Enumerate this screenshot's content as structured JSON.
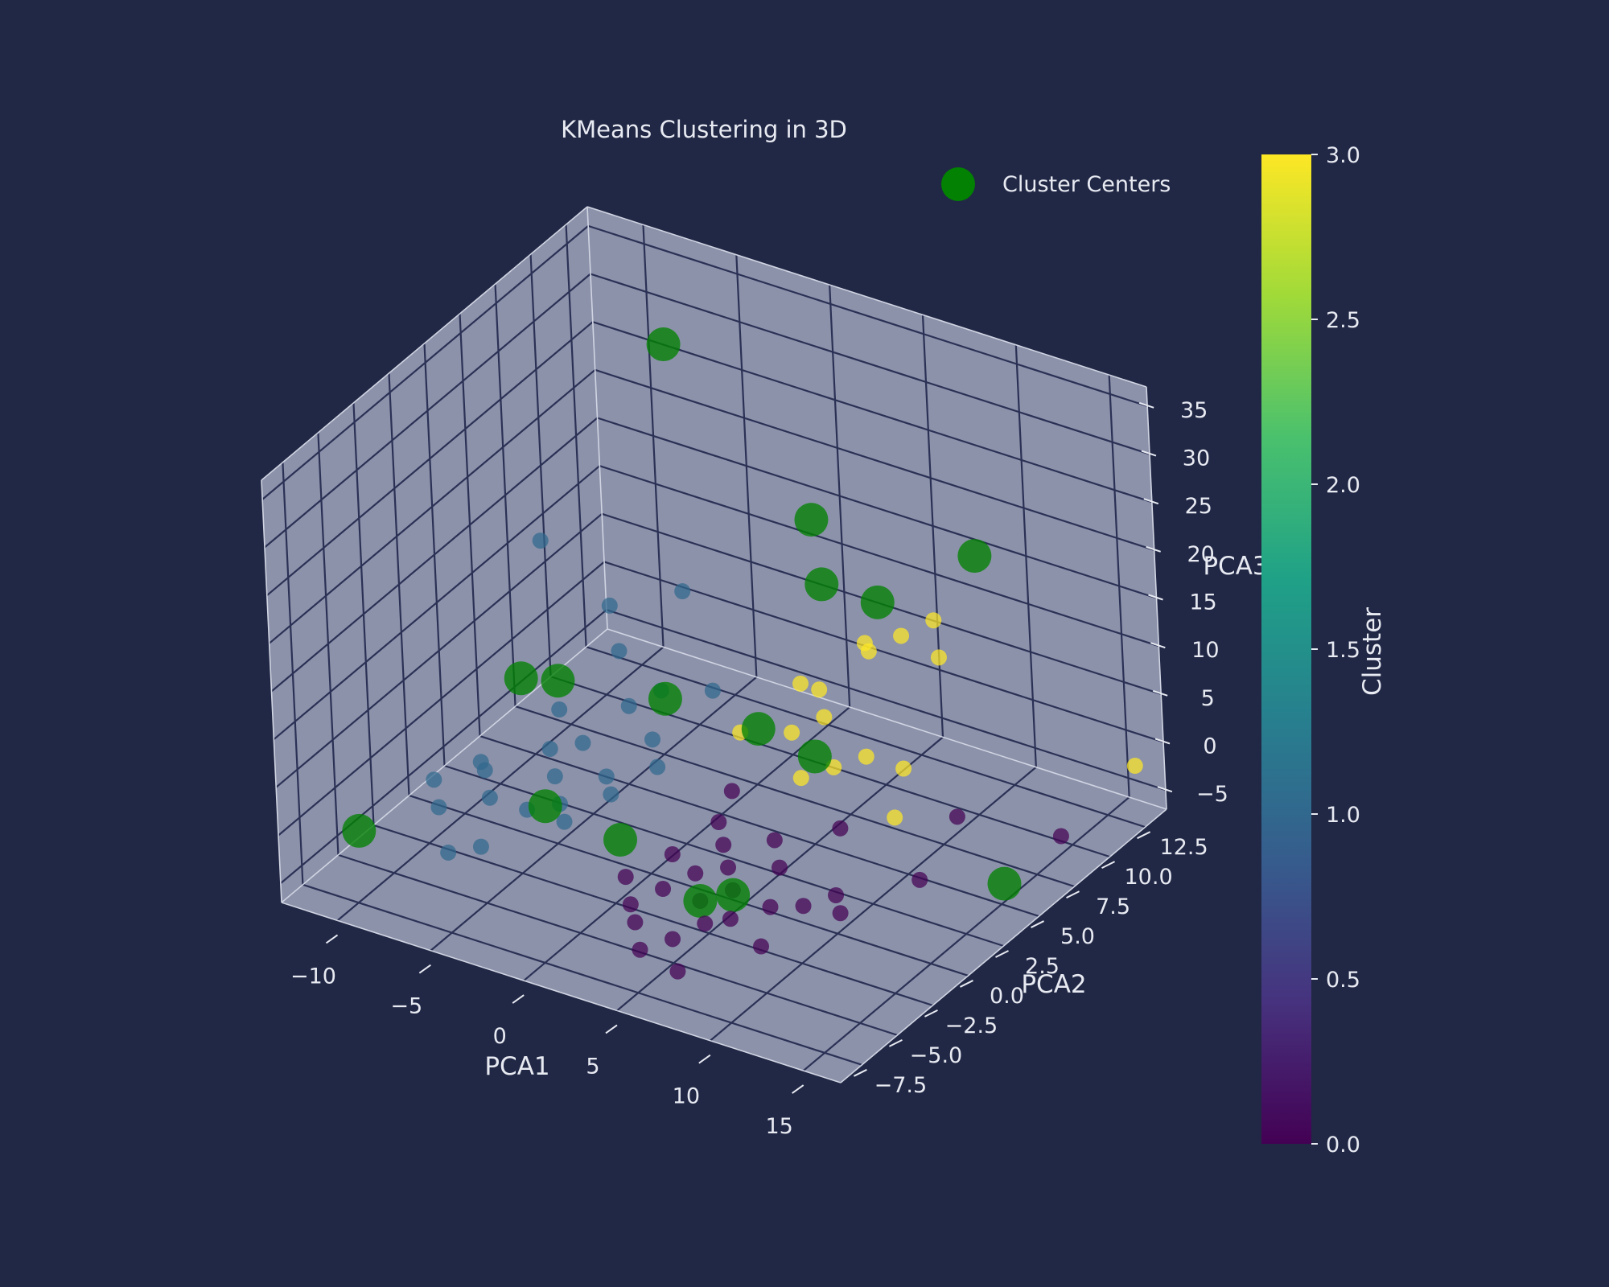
{
  "chart_data": {
    "type": "scatter",
    "title": "KMeans Clustering in 3D",
    "xlabel": "PCA1",
    "ylabel": "PCA2",
    "zlabel": "PCA3",
    "xlim": [
      -13,
      17
    ],
    "ylim": [
      -9,
      14
    ],
    "zlim": [
      -7,
      37
    ],
    "xticks": [
      "−10",
      "−5",
      "0",
      "5",
      "10",
      "15"
    ],
    "xtick_values": [
      -10,
      -5,
      0,
      5,
      10,
      15
    ],
    "yticks": [
      "−7.5",
      "−5.0",
      "−2.5",
      "0.0",
      "2.5",
      "5.0",
      "7.5",
      "10.0",
      "12.5"
    ],
    "ytick_values": [
      -7.5,
      -5,
      -2.5,
      0,
      2.5,
      5,
      7.5,
      10,
      12.5
    ],
    "zticks": [
      "−5",
      "0",
      "5",
      "10",
      "15",
      "20",
      "25",
      "30",
      "35"
    ],
    "ztick_values": [
      -5,
      0,
      5,
      10,
      15,
      20,
      25,
      30,
      35
    ],
    "grid": true,
    "legend": {
      "position": "top-right",
      "entries": [
        "Cluster Centers"
      ]
    },
    "colorbar": {
      "label": "Cluster",
      "range": [
        0,
        3
      ],
      "ticks": [
        "0.0",
        "0.5",
        "1.0",
        "1.5",
        "2.0",
        "2.5",
        "3.0"
      ],
      "colormap": "viridis"
    },
    "series": [
      {
        "cluster": 0,
        "points": [
          [
            3.0,
            -3.0,
            -3.0
          ],
          [
            4.0,
            -2.0,
            -2.0
          ],
          [
            5.0,
            -3.0,
            -3.0
          ],
          [
            6.0,
            -2.0,
            -2.5
          ],
          [
            7.0,
            -3.5,
            -3.0
          ],
          [
            2.0,
            -4.0,
            -4.0
          ],
          [
            3.0,
            -5.0,
            -4.0
          ],
          [
            5.0,
            -5.0,
            -4.5
          ],
          [
            6.0,
            -4.0,
            -3.5
          ],
          [
            8.0,
            -2.0,
            -3.0
          ],
          [
            9.0,
            -4.0,
            -4.0
          ],
          [
            4.0,
            0.0,
            -1.5
          ],
          [
            7.0,
            0.0,
            -2.0
          ],
          [
            5.0,
            -1.0,
            -2.0
          ],
          [
            3.0,
            1.0,
            -1.0
          ],
          [
            6.0,
            1.0,
            -1.0
          ],
          [
            10.0,
            0.0,
            -3.0
          ],
          [
            8.0,
            3.0,
            -1.0
          ],
          [
            2.0,
            -1.0,
            -2.5
          ],
          [
            4.0,
            -6.0,
            -5.0
          ],
          [
            11.0,
            -1.0,
            -3.0
          ],
          [
            13.0,
            2.0,
            -2.0
          ],
          [
            1.0,
            -3.0,
            -3.0
          ],
          [
            9.0,
            -1.0,
            -3.5
          ],
          [
            12.0,
            6.0,
            -1.0
          ],
          [
            16.0,
            8.0,
            -3.0
          ],
          [
            6.0,
            -6.0,
            -6.0
          ],
          [
            3.0,
            2.0,
            1.0
          ]
        ]
      },
      {
        "cluster": 1,
        "points": [
          [
            -8.0,
            -1.0,
            0.0
          ],
          [
            -9.0,
            -3.0,
            -2.0
          ],
          [
            -10.0,
            -2.0,
            -1.0
          ],
          [
            -7.0,
            -5.0,
            -3.0
          ],
          [
            -6.0,
            -4.0,
            -3.0
          ],
          [
            -5.0,
            0.0,
            0.0
          ],
          [
            -4.0,
            -1.0,
            -1.0
          ],
          [
            -3.0,
            1.0,
            0.0
          ],
          [
            -5.0,
            2.0,
            1.0
          ],
          [
            -6.0,
            1.0,
            1.0
          ],
          [
            -7.0,
            3.0,
            2.0
          ],
          [
            -4.0,
            4.0,
            3.0
          ],
          [
            -2.0,
            3.0,
            2.0
          ],
          [
            -3.0,
            5.0,
            4.0
          ],
          [
            -6.0,
            6.0,
            5.0
          ],
          [
            -8.0,
            8.0,
            6.0
          ],
          [
            -2.0,
            0.0,
            0.0
          ],
          [
            -1.0,
            2.0,
            1.0
          ],
          [
            -9.0,
            0.0,
            -1.0
          ],
          [
            -5.0,
            -2.0,
            -1.0
          ],
          [
            -7.0,
            -2.0,
            -1.0
          ],
          [
            -4.0,
            8.0,
            10.0
          ],
          [
            -10.0,
            6.0,
            14.0
          ],
          [
            -1.0,
            6.0,
            4.0
          ],
          [
            -3.0,
            -2.0,
            -1.0
          ]
        ]
      },
      {
        "cluster": 3,
        "points": [
          [
            2.0,
            4.0,
            4.0
          ],
          [
            4.0,
            5.0,
            4.0
          ],
          [
            5.0,
            6.0,
            5.0
          ],
          [
            6.0,
            3.0,
            3.0
          ],
          [
            7.0,
            4.0,
            3.5
          ],
          [
            8.0,
            5.0,
            4.0
          ],
          [
            3.0,
            7.0,
            6.0
          ],
          [
            6.0,
            8.0,
            10.0
          ],
          [
            7.0,
            9.0,
            11.0
          ],
          [
            8.0,
            10.0,
            12.0
          ],
          [
            9.0,
            9.0,
            10.0
          ],
          [
            5.0,
            9.0,
            9.0
          ],
          [
            10.0,
            5.0,
            4.0
          ],
          [
            11.0,
            3.0,
            2.0
          ],
          [
            4.0,
            7.0,
            6.0
          ],
          [
            17.0,
            12.0,
            0.0
          ]
        ]
      }
    ],
    "cluster_centers": [
      [
        -6.0,
        10.0,
        32.0
      ],
      [
        0.0,
        12.0,
        15.0
      ],
      [
        2.0,
        10.0,
        12.0
      ],
      [
        5.0,
        10.0,
        12.0
      ],
      [
        8.0,
        13.0,
        15.0
      ],
      [
        -7.0,
        3.0,
        5.0
      ],
      [
        -9.0,
        3.0,
        4.0
      ],
      [
        -2.0,
        4.0,
        5.0
      ],
      [
        3.0,
        4.0,
        5.0
      ],
      [
        6.0,
        4.0,
        4.0
      ],
      [
        -4.0,
        -2.0,
        0.0
      ],
      [
        -11.0,
        -6.0,
        -2.0
      ],
      [
        0.0,
        -2.0,
        -1.0
      ],
      [
        5.0,
        -3.0,
        -3.0
      ],
      [
        6.0,
        -2.0,
        -3.0
      ],
      [
        16.0,
        4.0,
        -3.0
      ]
    ]
  }
}
